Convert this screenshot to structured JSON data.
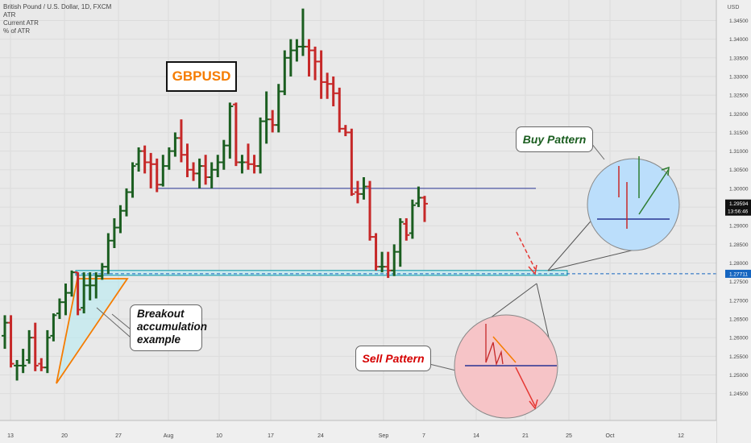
{
  "header": {
    "symbol_line": "British Pound / U.S. Dollar, 1D, FXCM",
    "indicators": [
      "ATR",
      "Current ATR",
      "% of ATR"
    ],
    "currency": "USD"
  },
  "chart_data": {
    "type": "ohlc",
    "title": "GBPUSD",
    "ylim": [
      1.2378,
      1.3505
    ],
    "yticks": [
      1.245,
      1.25,
      1.255,
      1.26,
      1.265,
      1.27,
      1.275,
      1.28,
      1.285,
      1.29,
      1.295,
      1.3,
      1.305,
      1.31,
      1.315,
      1.32,
      1.325,
      1.33,
      1.335,
      1.34,
      1.345
    ],
    "xtick_labels": [
      "13",
      "20",
      "27",
      "Aug",
      "10",
      "17",
      "24",
      "Sep",
      "7",
      "14",
      "21",
      "25",
      "Oct",
      "12"
    ],
    "current_price": "1.29594",
    "countdown": "13:56:46",
    "level_price": "1.27711",
    "colors": {
      "up": "#1b5e20",
      "down": "#c62828",
      "support": "#0097a7",
      "resistance": "#283593",
      "accent": "#f57c00",
      "price_label_bg": "#111111",
      "level_label_bg": "#1565c0"
    },
    "bars": [
      {
        "open": 1.2605,
        "high": 1.266,
        "low": 1.257,
        "close": 1.264
      },
      {
        "open": 1.264,
        "high": 1.266,
        "low": 1.252,
        "close": 1.253
      },
      {
        "open": 1.2525,
        "high": 1.254,
        "low": 1.2485,
        "close": 1.2525
      },
      {
        "open": 1.2525,
        "high": 1.257,
        "low": 1.2505,
        "close": 1.2525
      },
      {
        "open": 1.254,
        "high": 1.262,
        "low": 1.253,
        "close": 1.26
      },
      {
        "open": 1.26,
        "high": 1.264,
        "low": 1.251,
        "close": 1.2525
      },
      {
        "open": 1.253,
        "high": 1.2545,
        "low": 1.251,
        "close": 1.252
      },
      {
        "open": 1.252,
        "high": 1.262,
        "low": 1.2505,
        "close": 1.26
      },
      {
        "open": 1.2605,
        "high": 1.2665,
        "low": 1.259,
        "close": 1.266
      },
      {
        "open": 1.2665,
        "high": 1.2705,
        "low": 1.265,
        "close": 1.2695
      },
      {
        "open": 1.2695,
        "high": 1.2745,
        "low": 1.266,
        "close": 1.272
      },
      {
        "open": 1.272,
        "high": 1.278,
        "low": 1.271,
        "close": 1.2775
      },
      {
        "open": 1.2775,
        "high": 1.2775,
        "low": 1.266,
        "close": 1.2675
      },
      {
        "open": 1.268,
        "high": 1.2775,
        "low": 1.2665,
        "close": 1.274
      },
      {
        "open": 1.274,
        "high": 1.2775,
        "low": 1.27,
        "close": 1.274
      },
      {
        "open": 1.274,
        "high": 1.2775,
        "low": 1.2705,
        "close": 1.2765
      },
      {
        "open": 1.2765,
        "high": 1.28,
        "low": 1.2755,
        "close": 1.279
      },
      {
        "open": 1.279,
        "high": 1.288,
        "low": 1.277,
        "close": 1.286
      },
      {
        "open": 1.286,
        "high": 1.292,
        "low": 1.284,
        "close": 1.2895
      },
      {
        "open": 1.2895,
        "high": 1.2955,
        "low": 1.288,
        "close": 1.294
      },
      {
        "open": 1.294,
        "high": 1.3,
        "low": 1.2925,
        "close": 1.299
      },
      {
        "open": 1.299,
        "high": 1.307,
        "low": 1.2975,
        "close": 1.306
      },
      {
        "open": 1.3065,
        "high": 1.311,
        "low": 1.3045,
        "close": 1.31
      },
      {
        "open": 1.31,
        "high": 1.3115,
        "low": 1.304,
        "close": 1.307
      },
      {
        "open": 1.307,
        "high": 1.3095,
        "low": 1.3,
        "close": 1.3065
      },
      {
        "open": 1.3065,
        "high": 1.308,
        "low": 1.299,
        "close": 1.301
      },
      {
        "open": 1.301,
        "high": 1.309,
        "low": 1.3005,
        "close": 1.306
      },
      {
        "open": 1.306,
        "high": 1.311,
        "low": 1.305,
        "close": 1.31
      },
      {
        "open": 1.31,
        "high": 1.315,
        "low": 1.3085,
        "close": 1.3135
      },
      {
        "open": 1.3135,
        "high": 1.3185,
        "low": 1.307,
        "close": 1.309
      },
      {
        "open": 1.309,
        "high": 1.312,
        "low": 1.303,
        "close": 1.305
      },
      {
        "open": 1.305,
        "high": 1.307,
        "low": 1.302,
        "close": 1.304
      },
      {
        "open": 1.304,
        "high": 1.308,
        "low": 1.3,
        "close": 1.306
      },
      {
        "open": 1.306,
        "high": 1.309,
        "low": 1.301,
        "close": 1.303
      },
      {
        "open": 1.303,
        "high": 1.307,
        "low": 1.3,
        "close": 1.305
      },
      {
        "open": 1.305,
        "high": 1.309,
        "low": 1.303,
        "close": 1.307
      },
      {
        "open": 1.307,
        "high": 1.313,
        "low": 1.305,
        "close": 1.3115
      },
      {
        "open": 1.3115,
        "high": 1.323,
        "low": 1.308,
        "close": 1.322
      },
      {
        "open": 1.3225,
        "high": 1.323,
        "low": 1.306,
        "close": 1.307
      },
      {
        "open": 1.307,
        "high": 1.309,
        "low": 1.304,
        "close": 1.307
      },
      {
        "open": 1.307,
        "high": 1.312,
        "low": 1.305,
        "close": 1.3065
      },
      {
        "open": 1.3065,
        "high": 1.309,
        "low": 1.304,
        "close": 1.306
      },
      {
        "open": 1.306,
        "high": 1.319,
        "low": 1.304,
        "close": 1.318
      },
      {
        "open": 1.318,
        "high": 1.326,
        "low": 1.312,
        "close": 1.3185
      },
      {
        "open": 1.3185,
        "high": 1.321,
        "low": 1.315,
        "close": 1.317
      },
      {
        "open": 1.317,
        "high": 1.328,
        "low": 1.315,
        "close": 1.326
      },
      {
        "open": 1.326,
        "high": 1.337,
        "low": 1.325,
        "close": 1.335
      },
      {
        "open": 1.335,
        "high": 1.34,
        "low": 1.33,
        "close": 1.337
      },
      {
        "open": 1.337,
        "high": 1.34,
        "low": 1.334,
        "close": 1.338
      },
      {
        "open": 1.338,
        "high": 1.3482,
        "low": 1.3355,
        "close": 1.338
      },
      {
        "open": 1.338,
        "high": 1.34,
        "low": 1.33,
        "close": 1.337
      },
      {
        "open": 1.337,
        "high": 1.338,
        "low": 1.329,
        "close": 1.334
      },
      {
        "open": 1.334,
        "high": 1.337,
        "low": 1.324,
        "close": 1.3285
      },
      {
        "open": 1.3285,
        "high": 1.331,
        "low": 1.324,
        "close": 1.328
      },
      {
        "open": 1.328,
        "high": 1.33,
        "low": 1.322,
        "close": 1.3255
      },
      {
        "open": 1.3255,
        "high": 1.327,
        "low": 1.315,
        "close": 1.316
      },
      {
        "open": 1.316,
        "high": 1.317,
        "low": 1.314,
        "close": 1.315
      },
      {
        "open": 1.315,
        "high": 1.316,
        "low": 1.298,
        "close": 1.2985
      },
      {
        "open": 1.299,
        "high": 1.302,
        "low": 1.296,
        "close": 1.2985
      },
      {
        "open": 1.2985,
        "high": 1.303,
        "low": 1.297,
        "close": 1.3005
      },
      {
        "open": 1.3005,
        "high": 1.302,
        "low": 1.286,
        "close": 1.287
      },
      {
        "open": 1.287,
        "high": 1.288,
        "low": 1.278,
        "close": 1.279
      },
      {
        "open": 1.279,
        "high": 1.283,
        "low": 1.2775,
        "close": 1.279
      },
      {
        "open": 1.279,
        "high": 1.283,
        "low": 1.276,
        "close": 1.278
      },
      {
        "open": 1.278,
        "high": 1.285,
        "low": 1.2765,
        "close": 1.283
      },
      {
        "open": 1.283,
        "high": 1.292,
        "low": 1.279,
        "close": 1.291
      },
      {
        "open": 1.2905,
        "high": 1.292,
        "low": 1.286,
        "close": 1.2875
      },
      {
        "open": 1.288,
        "high": 1.297,
        "low": 1.2865,
        "close": 1.2955
      },
      {
        "open": 1.296,
        "high": 1.3005,
        "low": 1.295,
        "close": 1.2975
      },
      {
        "open": 1.2975,
        "high": 1.298,
        "low": 1.291,
        "close": 1.2959
      }
    ]
  },
  "annotations": {
    "breakout_callout": "Breakout accumulation example",
    "buy_pattern": "Buy Pattern",
    "sell_pattern": "Sell Pattern"
  }
}
